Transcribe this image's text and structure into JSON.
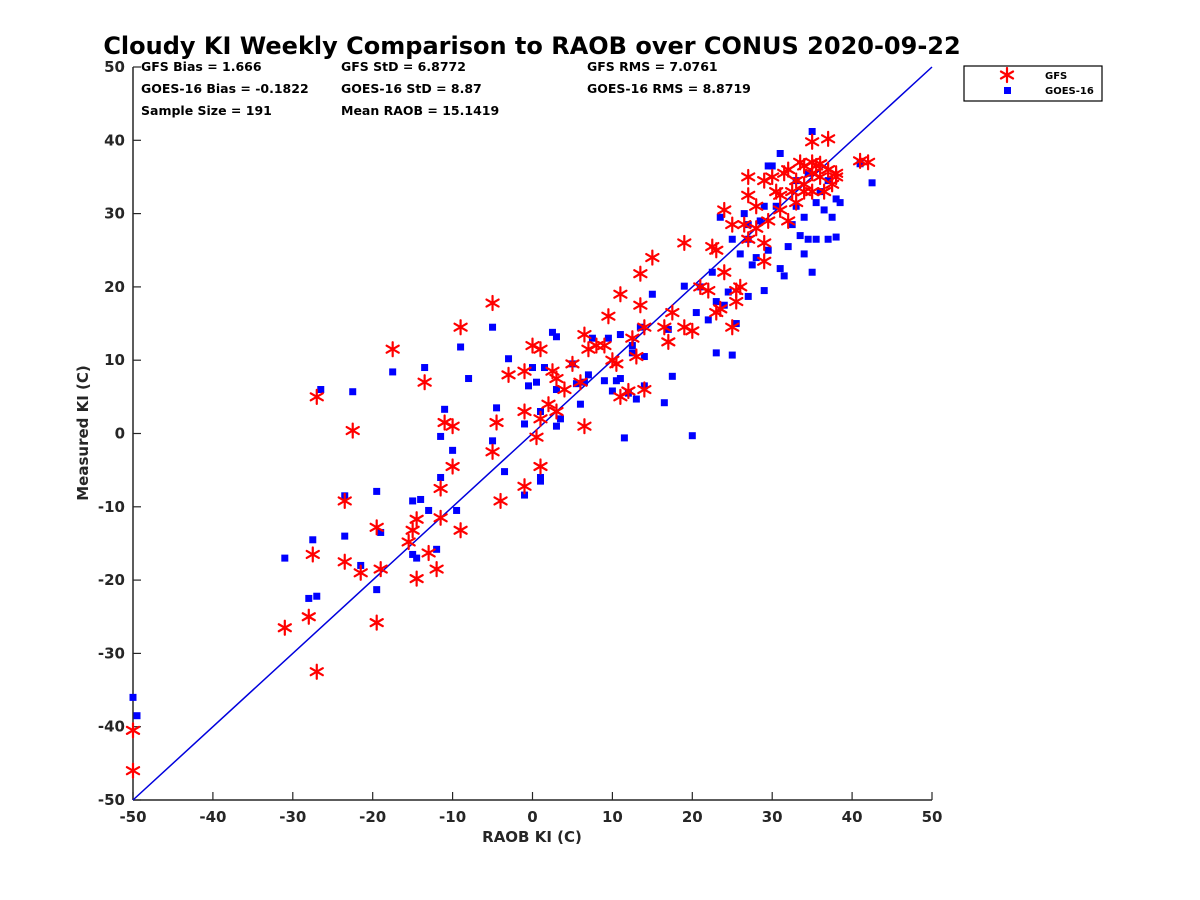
{
  "chart_data": {
    "type": "scatter",
    "title": "Cloudy KI Weekly Comparison to RAOB over CONUS 2020-09-22",
    "xlabel": "RAOB KI (C)",
    "ylabel": "Measured KI (C)",
    "xlim": [
      -50,
      50
    ],
    "ylim": [
      -50,
      50
    ],
    "xticks": [
      "-50",
      "-40",
      "-30",
      "-20",
      "-10",
      "0",
      "10",
      "20",
      "30",
      "40",
      "50"
    ],
    "yticks": [
      "-50",
      "-40",
      "-30",
      "-20",
      "-10",
      "0",
      "10",
      "20",
      "30",
      "40",
      "50"
    ],
    "grid": false,
    "legend_position": "outside top-right",
    "reference_line": {
      "type": "one-to-one",
      "color": "#0000dd"
    },
    "stats": {
      "gfs_bias": "GFS Bias = 1.666",
      "gfs_std": "GFS StD = 6.8772",
      "gfs_rms": "GFS RMS = 7.0761",
      "goes_bias": "GOES-16 Bias = -0.1822",
      "goes_std": "GOES-16 StD = 8.87",
      "goes_rms": "GOES-16 RMS = 8.8719",
      "sample_size": "Sample Size = 191",
      "mean_raob": "Mean RAOB = 15.1419"
    },
    "series": [
      {
        "name": "GFS",
        "marker": "asterisk",
        "color": "#ff0000",
        "points": [
          [
            -50,
            -40.5
          ],
          [
            -50,
            -46
          ],
          [
            -31,
            -26.5
          ],
          [
            -28,
            -25
          ],
          [
            -27.5,
            -16.5
          ],
          [
            -27,
            5
          ],
          [
            -27,
            -32.5
          ],
          [
            -23.5,
            -17.5
          ],
          [
            -23.5,
            -9.2
          ],
          [
            -22.5,
            0.4
          ],
          [
            -21.5,
            -19
          ],
          [
            -19.5,
            -25.8
          ],
          [
            -19.5,
            -12.8
          ],
          [
            -19,
            -18.5
          ],
          [
            -17.5,
            11.5
          ],
          [
            -14.5,
            -19.8
          ],
          [
            -14.5,
            -11.7
          ],
          [
            -15,
            -13.2
          ],
          [
            -15.5,
            -14.8
          ],
          [
            -13.5,
            7
          ],
          [
            -13,
            -16.3
          ],
          [
            -12,
            -18.5
          ],
          [
            -11.5,
            -7.5
          ],
          [
            -11.5,
            -11.5
          ],
          [
            -11,
            1.5
          ],
          [
            -10,
            -4.5
          ],
          [
            -10,
            1
          ],
          [
            -9,
            -13.2
          ],
          [
            -9,
            14.5
          ],
          [
            -5,
            17.8
          ],
          [
            -5,
            -2.5
          ],
          [
            -4.5,
            1.5
          ],
          [
            -4,
            -9.2
          ],
          [
            -3,
            8
          ],
          [
            -1,
            -7.2
          ],
          [
            -1,
            3
          ],
          [
            -1,
            8.5
          ],
          [
            0,
            12
          ],
          [
            0.5,
            -0.5
          ],
          [
            1,
            11.5
          ],
          [
            1,
            -4.5
          ],
          [
            1,
            2
          ],
          [
            2,
            4
          ],
          [
            2.5,
            8.5
          ],
          [
            3,
            7.5
          ],
          [
            3,
            3
          ],
          [
            4,
            6
          ],
          [
            5,
            9.5
          ],
          [
            6,
            7
          ],
          [
            6.5,
            1
          ],
          [
            6.5,
            13.5
          ],
          [
            7,
            11.5
          ],
          [
            8,
            12
          ],
          [
            9,
            12
          ],
          [
            9.5,
            16
          ],
          [
            10,
            10
          ],
          [
            10.5,
            9.5
          ],
          [
            11,
            19
          ],
          [
            11,
            5
          ],
          [
            12,
            5.8
          ],
          [
            12.5,
            13
          ],
          [
            13,
            10.5
          ],
          [
            13.5,
            17.5
          ],
          [
            13.5,
            21.8
          ],
          [
            14,
            14.5
          ],
          [
            14,
            6
          ],
          [
            15,
            24
          ],
          [
            16.5,
            14.5
          ],
          [
            17,
            12.5
          ],
          [
            17.5,
            16.5
          ],
          [
            19,
            26
          ],
          [
            19,
            14.5
          ],
          [
            20,
            14
          ],
          [
            21,
            20
          ],
          [
            22,
            19.5
          ],
          [
            22.5,
            25.5
          ],
          [
            23,
            25
          ],
          [
            23,
            16.5
          ],
          [
            23.5,
            17
          ],
          [
            24,
            30.5
          ],
          [
            24,
            22
          ],
          [
            25,
            14.5
          ],
          [
            25,
            28.5
          ],
          [
            25.5,
            18
          ],
          [
            25.5,
            19.5
          ],
          [
            26,
            20
          ],
          [
            26.5,
            28.5
          ],
          [
            27,
            35
          ],
          [
            27,
            32.5
          ],
          [
            27,
            26.5
          ],
          [
            28,
            28
          ],
          [
            28,
            31
          ],
          [
            29,
            23.5
          ],
          [
            29,
            26
          ],
          [
            29,
            34.5
          ],
          [
            29.5,
            29
          ],
          [
            30,
            35
          ],
          [
            30.5,
            33
          ],
          [
            31,
            30.5
          ],
          [
            31,
            32.5
          ],
          [
            31.5,
            35.5
          ],
          [
            32,
            36
          ],
          [
            32,
            29
          ],
          [
            32.5,
            33
          ],
          [
            33,
            34.5
          ],
          [
            33,
            31.5
          ],
          [
            33.5,
            37
          ],
          [
            34,
            36.5
          ],
          [
            34,
            34
          ],
          [
            34,
            33
          ],
          [
            35,
            37
          ],
          [
            35,
            39.8
          ],
          [
            35,
            35.5
          ],
          [
            35,
            33
          ],
          [
            35.5,
            36.5
          ],
          [
            36,
            35
          ],
          [
            36,
            36.8
          ],
          [
            36.5,
            33
          ],
          [
            37,
            40.2
          ],
          [
            37,
            36
          ],
          [
            37.5,
            34
          ],
          [
            38,
            35.5
          ],
          [
            38,
            35
          ],
          [
            41,
            37.2
          ],
          [
            42,
            37
          ]
        ]
      },
      {
        "name": "GOES-16",
        "marker": "square",
        "color": "#0000ff",
        "points": [
          [
            -50,
            -36
          ],
          [
            -49.5,
            -38.5
          ],
          [
            -31,
            -17
          ],
          [
            -28,
            -22.5
          ],
          [
            -27.5,
            -14.5
          ],
          [
            -27,
            -22.2
          ],
          [
            -26.5,
            6
          ],
          [
            -23.5,
            -8.5
          ],
          [
            -23.5,
            -14
          ],
          [
            -22.5,
            5.7
          ],
          [
            -21.5,
            -18
          ],
          [
            -19.5,
            -21.3
          ],
          [
            -19.5,
            -7.9
          ],
          [
            -19,
            -13.5
          ],
          [
            -17.5,
            8.4
          ],
          [
            -15,
            -9.2
          ],
          [
            -15,
            -16.5
          ],
          [
            -14.5,
            -17
          ],
          [
            -14,
            -9
          ],
          [
            -13.5,
            9
          ],
          [
            -13,
            -10.5
          ],
          [
            -12,
            -15.8
          ],
          [
            -11.5,
            -6
          ],
          [
            -11.5,
            -0.4
          ],
          [
            -11,
            3.3
          ],
          [
            -10,
            -2.3
          ],
          [
            -9.5,
            -10.5
          ],
          [
            -9,
            11.8
          ],
          [
            -8,
            7.5
          ],
          [
            -5,
            14.5
          ],
          [
            -5,
            -1
          ],
          [
            -4.5,
            3.5
          ],
          [
            -3.5,
            -5.2
          ],
          [
            -3,
            10.2
          ],
          [
            -1,
            -8.4
          ],
          [
            -1,
            1.3
          ],
          [
            -0.5,
            6.5
          ],
          [
            0,
            9
          ],
          [
            0.5,
            7
          ],
          [
            1,
            -6.5
          ],
          [
            1,
            -6
          ],
          [
            1,
            3
          ],
          [
            1.5,
            9
          ],
          [
            2.5,
            13.8
          ],
          [
            3,
            6
          ],
          [
            3,
            13.2
          ],
          [
            3,
            1
          ],
          [
            3.5,
            2
          ],
          [
            5,
            9.5
          ],
          [
            5.5,
            6.8
          ],
          [
            6,
            4
          ],
          [
            6.5,
            7
          ],
          [
            7,
            8
          ],
          [
            7.5,
            13
          ],
          [
            9,
            7.2
          ],
          [
            9.5,
            13
          ],
          [
            10,
            5.8
          ],
          [
            10.5,
            7.2
          ],
          [
            11,
            7.5
          ],
          [
            11,
            13.5
          ],
          [
            11.5,
            -0.6
          ],
          [
            12,
            5.5
          ],
          [
            12.5,
            11
          ],
          [
            12.5,
            12
          ],
          [
            13,
            4.7
          ],
          [
            13.5,
            14.5
          ],
          [
            14,
            6.5
          ],
          [
            14,
            10.5
          ],
          [
            15,
            19
          ],
          [
            16.5,
            4.2
          ],
          [
            17,
            14.2
          ],
          [
            17.5,
            7.8
          ],
          [
            19,
            20.1
          ],
          [
            20,
            -0.3
          ],
          [
            20.5,
            16.5
          ],
          [
            21,
            20
          ],
          [
            22,
            15.5
          ],
          [
            22.5,
            22
          ],
          [
            23,
            18
          ],
          [
            23,
            11
          ],
          [
            23.5,
            29.5
          ],
          [
            24,
            17.5
          ],
          [
            24.5,
            19.3
          ],
          [
            25,
            26.5
          ],
          [
            25,
            10.7
          ],
          [
            25.5,
            15
          ],
          [
            26,
            24.5
          ],
          [
            26.5,
            30
          ],
          [
            27,
            28.5
          ],
          [
            27,
            26.5
          ],
          [
            27,
            18.7
          ],
          [
            27.5,
            23
          ],
          [
            28,
            24
          ],
          [
            28.5,
            29
          ],
          [
            29,
            19.5
          ],
          [
            29,
            31
          ],
          [
            29.5,
            36.5
          ],
          [
            29.5,
            25
          ],
          [
            30,
            36.5
          ],
          [
            30.5,
            31
          ],
          [
            31,
            22.5
          ],
          [
            31,
            38.2
          ],
          [
            31.5,
            21.5
          ],
          [
            32,
            25.5
          ],
          [
            32.5,
            28.5
          ],
          [
            33,
            31
          ],
          [
            33,
            34.5
          ],
          [
            33.5,
            27
          ],
          [
            34,
            29.5
          ],
          [
            34,
            24.5
          ],
          [
            34.5,
            26.5
          ],
          [
            34.5,
            35.5
          ],
          [
            35,
            22
          ],
          [
            35,
            41.2
          ],
          [
            35.5,
            31.5
          ],
          [
            35.5,
            26.5
          ],
          [
            36,
            33
          ],
          [
            36.5,
            30.5
          ],
          [
            37,
            26.5
          ],
          [
            37,
            34.5
          ],
          [
            37.5,
            29.5
          ],
          [
            38,
            32
          ],
          [
            38,
            26.8
          ],
          [
            38.5,
            31.5
          ],
          [
            41,
            36.8
          ],
          [
            42.5,
            34.2
          ]
        ]
      }
    ]
  }
}
